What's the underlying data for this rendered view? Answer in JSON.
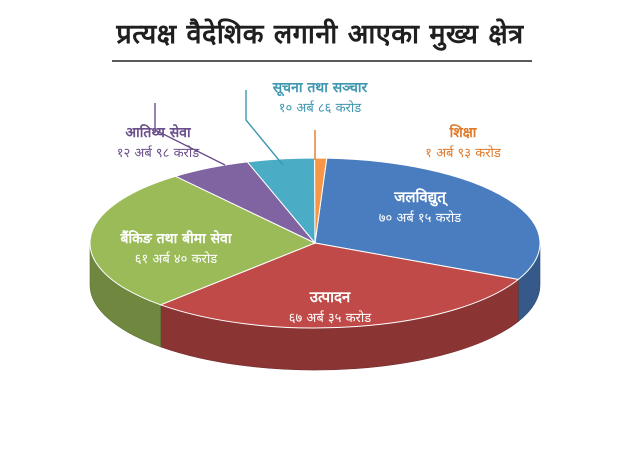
{
  "chart_data": {
    "type": "pie",
    "title": "प्रत्यक्ष वैदेशिक लगानी आएका मुख्य क्षेत्र",
    "slices": [
      {
        "name": "जलविद्युत्",
        "value": 70.15,
        "value_label": "७० अर्ब १५ करोड",
        "color": "#4a7dbf"
      },
      {
        "name": "उत्पादन",
        "value": 67.35,
        "value_label": "६७ अर्ब ३५ करोड",
        "color": "#c04a48"
      },
      {
        "name": "बैंकिङ तथा बीमा सेवा",
        "value": 61.4,
        "value_label": "६१ अर्ब ४० करोड",
        "color": "#9bbb59"
      },
      {
        "name": "आतिथ्य सेवा",
        "value": 12.98,
        "value_label": "१२ अर्ब ९८ करोड",
        "color": "#8064a2"
      },
      {
        "name": "सूचना तथा सञ्चार",
        "value": 10.86,
        "value_label": "१० अर्ब ८६ करोड",
        "color": "#4bacc6"
      },
      {
        "name": "शिक्षा",
        "value": 1.93,
        "value_label": "१ अर्ब ९३ करोड",
        "color": "#f79646"
      }
    ]
  }
}
